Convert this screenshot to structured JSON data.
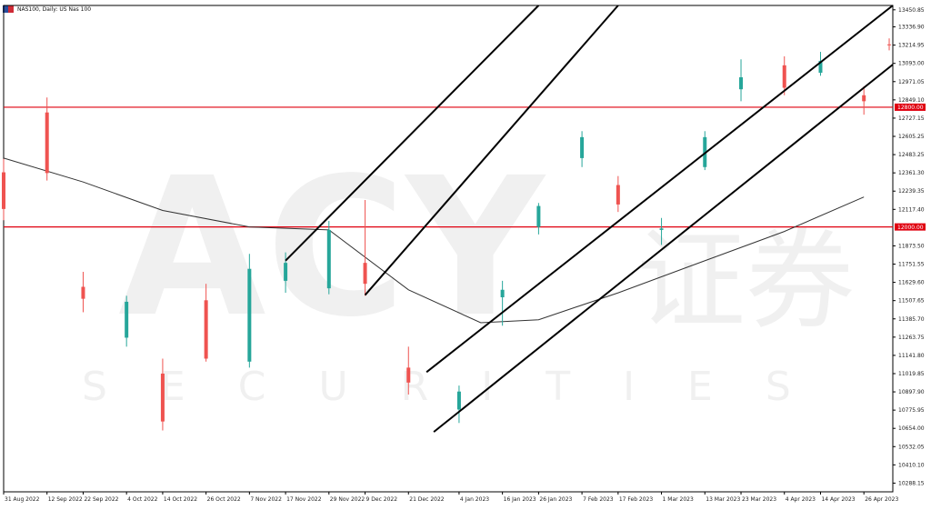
{
  "header": {
    "title": "NAS100, Daily: US Nas 100",
    "flag_icon": "flag-icon"
  },
  "colors": {
    "up": "#26a69a",
    "down": "#ef5350",
    "hline": "#e0000f",
    "channel": "#000000",
    "ma": "#333333",
    "axis": "#000000",
    "watermark": "#f0f0f0"
  },
  "watermark": {
    "brand": "ACY",
    "brand_cn": "证券",
    "sub": "SECURITIES"
  },
  "chart_data": {
    "type": "candlestick",
    "title": "NAS100, Daily: US Nas 100",
    "y_axis_ticks": [
      "13450.85",
      "13336.90",
      "13214.95",
      "13093.00",
      "12971.05",
      "12849.10",
      "12727.15",
      "12605.25",
      "12483.25",
      "12361.30",
      "12239.35",
      "12117.40",
      "11873.50",
      "11751.55",
      "11629.60",
      "11507.65",
      "11385.70",
      "11263.75",
      "11141.80",
      "11019.85",
      "10897.90",
      "10775.95",
      "10654.00",
      "10532.05",
      "10410.10",
      "10288.15"
    ],
    "ylim": [
      10230,
      13480
    ],
    "x_axis_ticks": [
      "31 Aug 2022",
      "12 Sep 2022",
      "22 Sep 2022",
      "4 Oct 2022",
      "14 Oct 2022",
      "26 Oct 2022",
      "7 Nov 2022",
      "17 Nov 2022",
      "29 Nov 2022",
      "9 Dec 2022",
      "21 Dec 2022",
      "4 Jan 2023",
      "16 Jan 2023",
      "26 Jan 2023",
      "7 Feb 2023",
      "17 Feb 2023",
      "1 Mar 2023",
      "13 Mar 2023",
      "23 Mar 2023",
      "4 Apr 2023",
      "14 Apr 2023",
      "26 Apr 2023"
    ],
    "horizontal_levels": [
      {
        "price": 12800.0,
        "label": "12800.00"
      },
      {
        "price": 12000.0,
        "label": "12000.00"
      }
    ],
    "channel_lines": [
      {
        "start": {
          "date": "17 Nov 2022",
          "price": 11775
        },
        "end": {
          "date": "26 Jan 2023",
          "price": 13480
        }
      },
      {
        "start": {
          "date": "9 Dec 2022",
          "price": 11545
        },
        "end": {
          "date": "17 Feb 2023",
          "price": 13480
        }
      },
      {
        "start": {
          "date": "26 Dec 2022",
          "price": 11030
        },
        "end": {
          "date": "4 May 2023",
          "price": 13480
        }
      },
      {
        "start": {
          "date": "28 Dec 2022",
          "price": 10630
        },
        "end": {
          "date": "4 May 2023",
          "price": 13085
        }
      }
    ],
    "moving_average": [
      {
        "date": "31 Aug 2022",
        "price": 12460
      },
      {
        "date": "22 Sep 2022",
        "price": 12300
      },
      {
        "date": "14 Oct 2022",
        "price": 12110
      },
      {
        "date": "7 Nov 2022",
        "price": 12000
      },
      {
        "date": "29 Nov 2022",
        "price": 11980
      },
      {
        "date": "21 Dec 2022",
        "price": 11580
      },
      {
        "date": "10 Jan 2023",
        "price": 11360
      },
      {
        "date": "26 Jan 2023",
        "price": 11380
      },
      {
        "date": "17 Feb 2023",
        "price": 11560
      },
      {
        "date": "8 Mar 2023",
        "price": 11730
      },
      {
        "date": "4 Apr 2023",
        "price": 11970
      },
      {
        "date": "26 Apr 2023",
        "price": 12200
      }
    ],
    "candles": [
      {
        "date": "31 Aug 2022",
        "o": 12365,
        "h": 12455,
        "l": 12045,
        "c": 12120
      },
      {
        "date": "12 Sep 2022",
        "o": 12765,
        "h": 12865,
        "l": 12310,
        "c": 12360
      },
      {
        "date": "22 Sep 2022",
        "o": 11600,
        "h": 11700,
        "l": 11430,
        "c": 11520
      },
      {
        "date": "4 Oct 2022",
        "o": 11260,
        "h": 11540,
        "l": 11200,
        "c": 11500
      },
      {
        "date": "14 Oct 2022",
        "o": 11020,
        "h": 11120,
        "l": 10640,
        "c": 10700
      },
      {
        "date": "26 Oct 2022",
        "o": 11510,
        "h": 11620,
        "l": 11100,
        "c": 11120
      },
      {
        "date": "7 Nov 2022",
        "o": 11100,
        "h": 11820,
        "l": 11060,
        "c": 11720
      },
      {
        "date": "17 Nov 2022",
        "o": 11640,
        "h": 11830,
        "l": 11560,
        "c": 11760
      },
      {
        "date": "29 Nov 2022",
        "o": 11590,
        "h": 12040,
        "l": 11550,
        "c": 11980
      },
      {
        "date": "9 Dec 2022",
        "o": 11760,
        "h": 12180,
        "l": 11540,
        "c": 11620
      },
      {
        "date": "21 Dec 2022",
        "o": 11060,
        "h": 11200,
        "l": 10880,
        "c": 10960
      },
      {
        "date": "4 Jan 2023",
        "o": 10780,
        "h": 10940,
        "l": 10690,
        "c": 10900
      },
      {
        "date": "16 Jan 2023",
        "o": 11530,
        "h": 11640,
        "l": 11340,
        "c": 11580
      },
      {
        "date": "26 Jan 2023",
        "o": 12000,
        "h": 12160,
        "l": 11950,
        "c": 12140
      },
      {
        "date": "7 Feb 2023",
        "o": 12460,
        "h": 12640,
        "l": 12400,
        "c": 12600
      },
      {
        "date": "17 Feb 2023",
        "o": 12280,
        "h": 12340,
        "l": 12100,
        "c": 12150
      },
      {
        "date": "1 Mar 2023",
        "o": 11980,
        "h": 12060,
        "l": 11880,
        "c": 11990
      },
      {
        "date": "13 Mar 2023",
        "o": 12400,
        "h": 12640,
        "l": 12380,
        "c": 12600
      },
      {
        "date": "23 Mar 2023",
        "o": 12920,
        "h": 13120,
        "l": 12840,
        "c": 13000
      },
      {
        "date": "4 Apr 2023",
        "o": 13080,
        "h": 13140,
        "l": 12880,
        "c": 12930
      },
      {
        "date": "14 Apr 2023",
        "o": 13030,
        "h": 13170,
        "l": 13010,
        "c": 13110
      },
      {
        "date": "26 Apr 2023",
        "o": 12880,
        "h": 12940,
        "l": 12750,
        "c": 12840
      },
      {
        "date": "3 May 2023",
        "o": 13220,
        "h": 13260,
        "l": 13180,
        "c": 13215
      }
    ]
  }
}
